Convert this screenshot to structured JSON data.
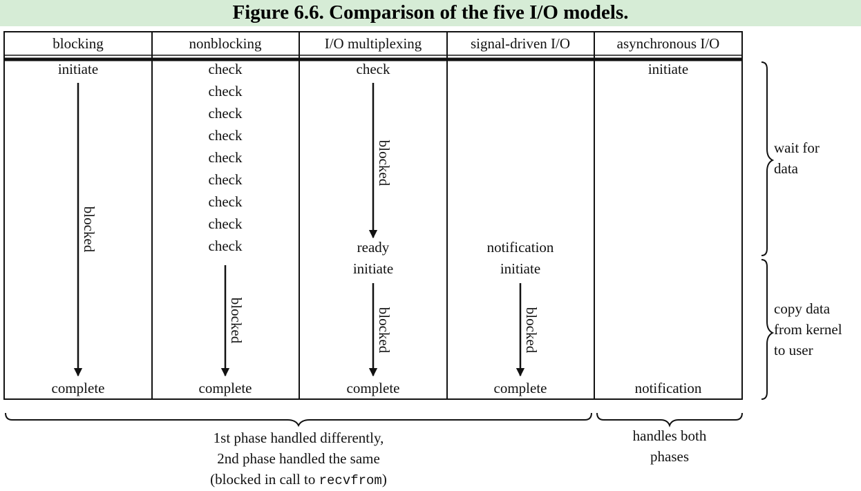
{
  "title": "Figure 6.6. Comparison of the five I/O models.",
  "columns": [
    {
      "header": "blocking",
      "items": [
        "initiate",
        "complete"
      ],
      "arrows": [
        "blocked"
      ]
    },
    {
      "header": "nonblocking",
      "items": [
        "check",
        "check",
        "check",
        "check",
        "check",
        "check",
        "check",
        "check",
        "check",
        "complete"
      ],
      "arrows": [
        "blocked"
      ]
    },
    {
      "header": "I/O multiplexing",
      "items": [
        "check",
        "ready",
        "initiate",
        "complete"
      ],
      "arrows": [
        "blocked",
        "blocked"
      ]
    },
    {
      "header": "signal-driven I/O",
      "items": [
        "notification",
        "initiate",
        "complete"
      ],
      "arrows": [
        "blocked"
      ]
    },
    {
      "header": "asynchronous I/O",
      "items": [
        "initiate",
        "notification"
      ],
      "arrows": []
    }
  ],
  "right_braces": {
    "wait": [
      "wait for",
      "data"
    ],
    "copy": [
      "copy data",
      "from kernel",
      "to user"
    ]
  },
  "bottom_braces": {
    "left": [
      "1st phase handled differently,",
      "2nd phase handled the same",
      "(blocked in call to ",
      "recvfrom",
      ")"
    ],
    "right": [
      "handles both",
      "phases"
    ]
  }
}
